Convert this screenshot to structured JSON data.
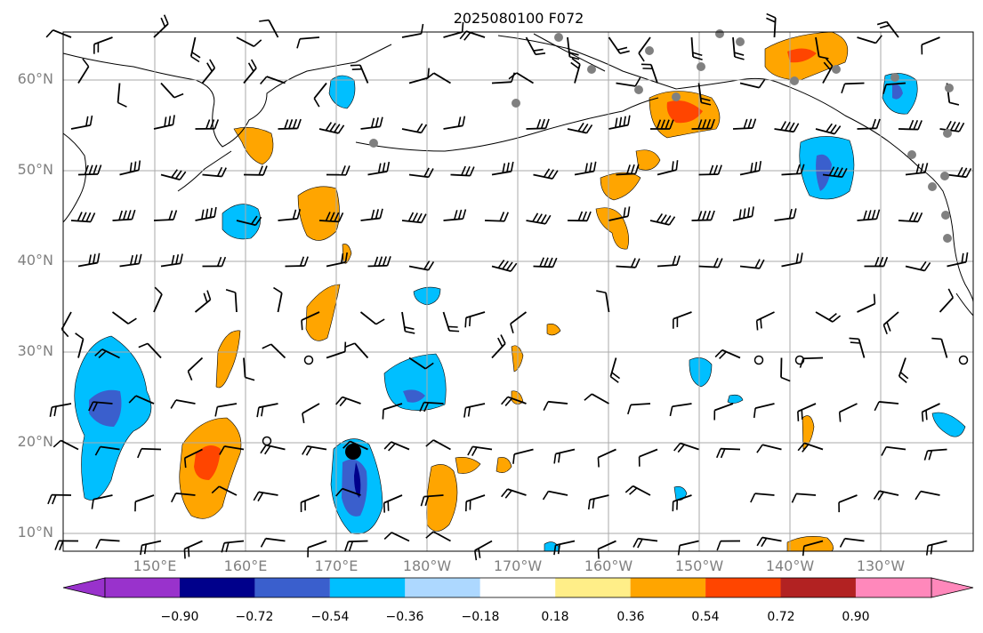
{
  "title": "2025080100 F072",
  "map": {
    "lat_labels": [
      "60°N",
      "50°N",
      "40°N",
      "30°N",
      "20°N",
      "10°N"
    ],
    "lon_labels": [
      "150°E",
      "160°E",
      "170°E",
      "180°W",
      "170°W",
      "160°W",
      "150°W",
      "140°W",
      "130°W"
    ],
    "extent": {
      "lon_west": 140,
      "lon_east": 239.5,
      "lat_south": 8,
      "lat_north": 65
    },
    "grid_lines": true
  },
  "colorbar": {
    "ticks": [
      "−0.90",
      "−0.72",
      "−0.54",
      "−0.36",
      "−0.18",
      "0.18",
      "0.36",
      "0.54",
      "0.72",
      "0.90"
    ],
    "colors": [
      "#9932cc",
      "#00008b",
      "#3a5fcd",
      "#00bfff",
      "#add8ff",
      "#ffffff",
      "#ffee88",
      "#ffa500",
      "#ff4500",
      "#b22222",
      "#ff88bb"
    ],
    "extend": "both"
  },
  "colors": {
    "contour_orange": "#ffa500",
    "contour_red": "#ff4500",
    "contour_lightblue": "#00bfff",
    "contour_blue": "#3a5fcd",
    "grid": "#aaaaaa",
    "markers_gray": "#808080"
  }
}
